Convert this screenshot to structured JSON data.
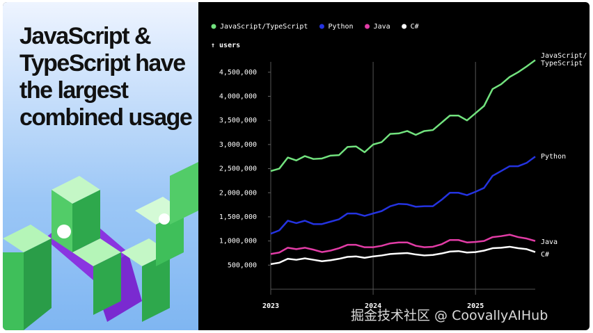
{
  "panel": {
    "headline": "JavaScript & TypeScript have the largest combined usage"
  },
  "watermark": "掘金技术社区 @ CoovallyAIHub",
  "chart_data": {
    "type": "line",
    "y_label": "↑ users",
    "x": [
      2023,
      2023.0833,
      2023.1667,
      2023.25,
      2023.3333,
      2023.4167,
      2023.5,
      2023.5833,
      2023.6667,
      2023.75,
      2023.8333,
      2023.9167,
      2024,
      2024.0833,
      2024.1667,
      2024.25,
      2024.3333,
      2024.4167,
      2024.5,
      2024.5833,
      2024.6667,
      2024.75,
      2024.8333,
      2024.9167,
      2025,
      2025.0833,
      2025.1667,
      2025.25,
      2025.3333,
      2025.4167,
      2025.5,
      2025.5833
    ],
    "xlim": [
      2023,
      2025.5833
    ],
    "xticks": [
      2023,
      2024,
      2025
    ],
    "ylim": [
      0,
      4800000
    ],
    "yticks": [
      {
        "value": 500000,
        "label": "500,000"
      },
      {
        "value": 1000000,
        "label": "1,000,000"
      },
      {
        "value": 1500000,
        "label": "1,500,000"
      },
      {
        "value": 2000000,
        "label": "2,000,000"
      },
      {
        "value": 2500000,
        "label": "2,500,000"
      },
      {
        "value": 3000000,
        "label": "3,000,000"
      },
      {
        "value": 3500000,
        "label": "3,500,000"
      },
      {
        "value": 4000000,
        "label": "4,000,000"
      },
      {
        "value": 4500000,
        "label": "4,500,000"
      }
    ],
    "series": [
      {
        "name": "JavaScript/TypeScript",
        "color": "#72e27e",
        "values": [
          2450000,
          2500000,
          2730000,
          2670000,
          2760000,
          2700000,
          2710000,
          2770000,
          2780000,
          2950000,
          2960000,
          2840000,
          3000000,
          3050000,
          3220000,
          3230000,
          3280000,
          3200000,
          3280000,
          3300000,
          3450000,
          3600000,
          3600000,
          3500000,
          3650000,
          3800000,
          4150000,
          4250000,
          4400000,
          4500000,
          4620000,
          4750000
        ]
      },
      {
        "name": "Python",
        "color": "#2433e0",
        "values": [
          1150000,
          1220000,
          1420000,
          1370000,
          1420000,
          1350000,
          1350000,
          1400000,
          1450000,
          1570000,
          1570000,
          1520000,
          1570000,
          1620000,
          1720000,
          1770000,
          1760000,
          1710000,
          1720000,
          1720000,
          1850000,
          2000000,
          2000000,
          1950000,
          2020000,
          2100000,
          2350000,
          2450000,
          2550000,
          2550000,
          2620000,
          2750000
        ]
      },
      {
        "name": "Java",
        "color": "#e23ca6",
        "values": [
          730000,
          760000,
          860000,
          830000,
          860000,
          820000,
          770000,
          800000,
          850000,
          920000,
          920000,
          870000,
          870000,
          900000,
          950000,
          970000,
          970000,
          900000,
          870000,
          880000,
          930000,
          1020000,
          1020000,
          970000,
          980000,
          1000000,
          1080000,
          1100000,
          1130000,
          1080000,
          1050000,
          1000000
        ]
      },
      {
        "name": "C#",
        "color": "#ffffff",
        "values": [
          520000,
          550000,
          630000,
          610000,
          640000,
          610000,
          580000,
          600000,
          630000,
          670000,
          680000,
          650000,
          680000,
          700000,
          730000,
          740000,
          750000,
          720000,
          700000,
          710000,
          740000,
          780000,
          790000,
          760000,
          770000,
          800000,
          850000,
          860000,
          880000,
          850000,
          830000,
          770000
        ]
      }
    ]
  }
}
